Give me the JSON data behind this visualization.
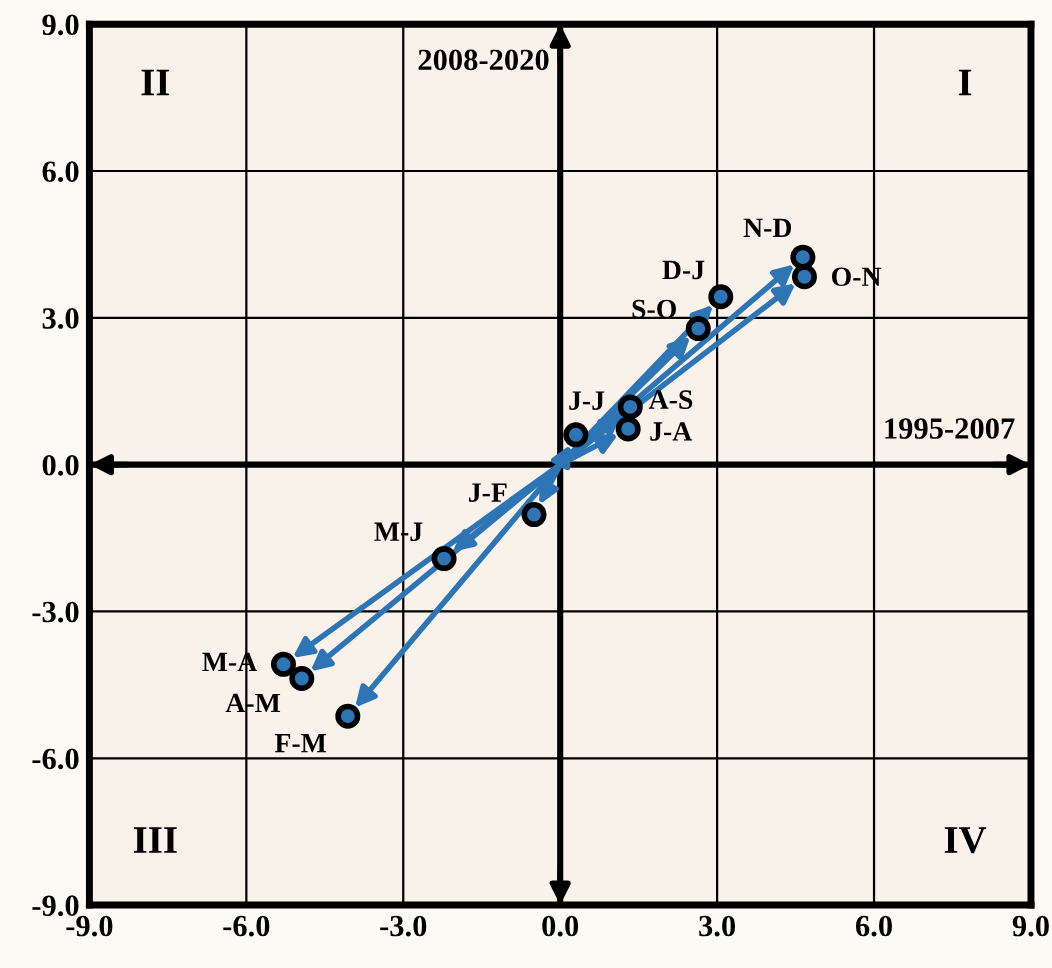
{
  "chart_data": {
    "type": "scatter",
    "xlabel": "1995-2007",
    "ylabel": "2008-2020",
    "x": [
      -0.5,
      -4.06,
      -5.29,
      -4.94,
      -2.22,
      0.3,
      1.3,
      1.34,
      2.64,
      4.67,
      4.64,
      3.07
    ],
    "series": [
      {
        "color": "#2e75b6",
        "values": [
          -1.02,
          -5.14,
          -4.08,
          -4.37,
          -1.92,
          0.61,
          0.73,
          1.18,
          2.78,
          3.84,
          4.24,
          3.43
        ]
      }
    ],
    "annotations": [
      {
        "text": "J-F",
        "x": -0.5,
        "y": -1.02
      },
      {
        "text": "F-M",
        "x": -4.06,
        "y": -5.14
      },
      {
        "text": "M-A",
        "x": -5.29,
        "y": -4.08
      },
      {
        "text": "A-M",
        "x": -4.94,
        "y": -4.37
      },
      {
        "text": "M-J",
        "x": -2.22,
        "y": -1.92
      },
      {
        "text": "J-J",
        "x": 0.3,
        "y": 0.61
      },
      {
        "text": "J-A",
        "x": 1.3,
        "y": 0.73
      },
      {
        "text": "A-S",
        "x": 1.34,
        "y": 1.18
      },
      {
        "text": "S-O",
        "x": 2.64,
        "y": 2.78
      },
      {
        "text": "O-N",
        "x": 4.67,
        "y": 3.84
      },
      {
        "text": "N-D",
        "x": 4.64,
        "y": 4.24
      },
      {
        "text": "D-J",
        "x": 3.07,
        "y": 3.43
      },
      "I",
      "II",
      "III",
      "IV"
    ],
    "xlim": [
      -9,
      9
    ],
    "ylim": [
      -9,
      9
    ],
    "xticks": [
      {
        "value": -9,
        "label": "-9.0"
      },
      {
        "value": -6,
        "label": "-6.0"
      },
      {
        "value": -3,
        "label": "-3.0"
      },
      {
        "value": 0,
        "label": "0.0"
      },
      {
        "value": 3,
        "label": "3.0"
      },
      {
        "value": 6,
        "label": "6.0"
      },
      {
        "value": 9,
        "label": "9.0"
      }
    ],
    "yticks": [
      {
        "value": -9,
        "label": "-9.0"
      },
      {
        "value": -6,
        "label": "-6.0"
      },
      {
        "value": -3,
        "label": "-3.0"
      },
      {
        "value": 0,
        "label": "0.0"
      },
      {
        "value": 3,
        "label": "3.0"
      },
      {
        "value": 6,
        "label": "6.0"
      },
      {
        "value": 9,
        "label": "9.0"
      }
    ],
    "grid": true,
    "marker": "circle"
  }
}
